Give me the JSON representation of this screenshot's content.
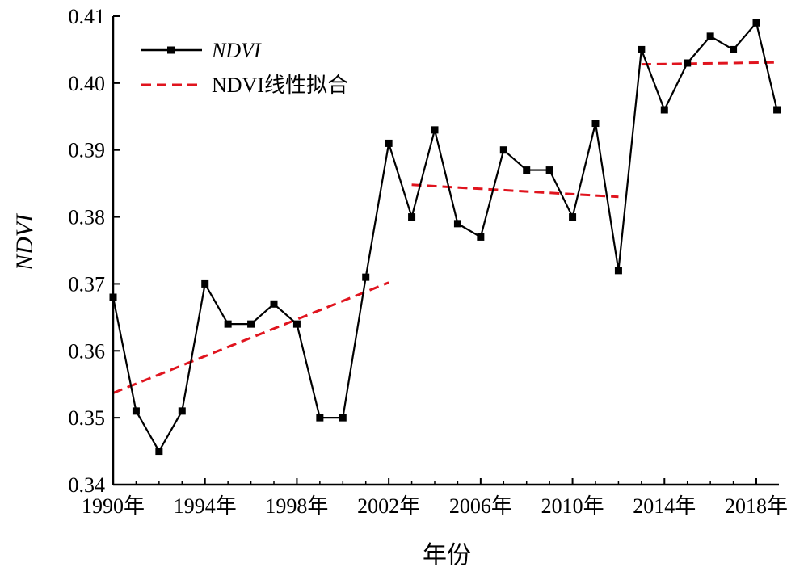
{
  "chart_data": {
    "type": "line",
    "xlabel": "年份",
    "ylabel": "NDVI",
    "xlim": [
      1990,
      2018.5
    ],
    "ylim": [
      0.34,
      0.41
    ],
    "x_ticks": [
      1990,
      1994,
      1998,
      2002,
      2006,
      2010,
      2014,
      2018
    ],
    "x_tick_labels": [
      "1990年",
      "1994年",
      "1998年",
      "2002年",
      "2006年",
      "2010年",
      "2014年",
      "2018年"
    ],
    "y_ticks": [
      0.34,
      0.35,
      0.36,
      0.37,
      0.38,
      0.39,
      0.4,
      0.41
    ],
    "y_tick_labels": [
      "0.34",
      "0.35",
      "0.36",
      "0.37",
      "0.38",
      "0.39",
      "0.40",
      "0.41"
    ],
    "legend_position": "top-left",
    "series": [
      {
        "name": "NDVI",
        "style": "solid-square-markers",
        "color": "#000000",
        "x": [
          1990,
          1991,
          1992,
          1993,
          1994,
          1995,
          1996,
          1997,
          1998,
          1999,
          2000,
          2001,
          2002,
          2003,
          2004,
          2005,
          2006,
          2007,
          2008,
          2009,
          2010,
          2011,
          2012,
          2013,
          2014,
          2015,
          2016,
          2017,
          2018,
          2018.9
        ],
        "y": [
          0.368,
          0.351,
          0.345,
          0.351,
          0.37,
          0.364,
          0.364,
          0.367,
          0.364,
          0.35,
          0.35,
          0.371,
          0.391,
          0.38,
          0.393,
          0.379,
          0.377,
          0.39,
          0.387,
          0.387,
          0.38,
          0.394,
          0.372,
          0.405,
          0.396,
          0.403,
          0.407,
          0.405,
          0.409,
          0.396
        ]
      }
    ],
    "fits": [
      {
        "name": "NDVI线性拟合",
        "style": "dashed",
        "color": "#e0141e",
        "x": [
          1990,
          2002
        ],
        "y": [
          0.3537,
          0.3702
        ]
      },
      {
        "name": "",
        "style": "dashed",
        "color": "#e0141e",
        "x": [
          2003,
          2012
        ],
        "y": [
          0.3848,
          0.383
        ]
      },
      {
        "name": "",
        "style": "dashed",
        "color": "#e0141e",
        "x": [
          2013,
          2018.9
        ],
        "y": [
          0.4028,
          0.4031
        ]
      }
    ]
  }
}
